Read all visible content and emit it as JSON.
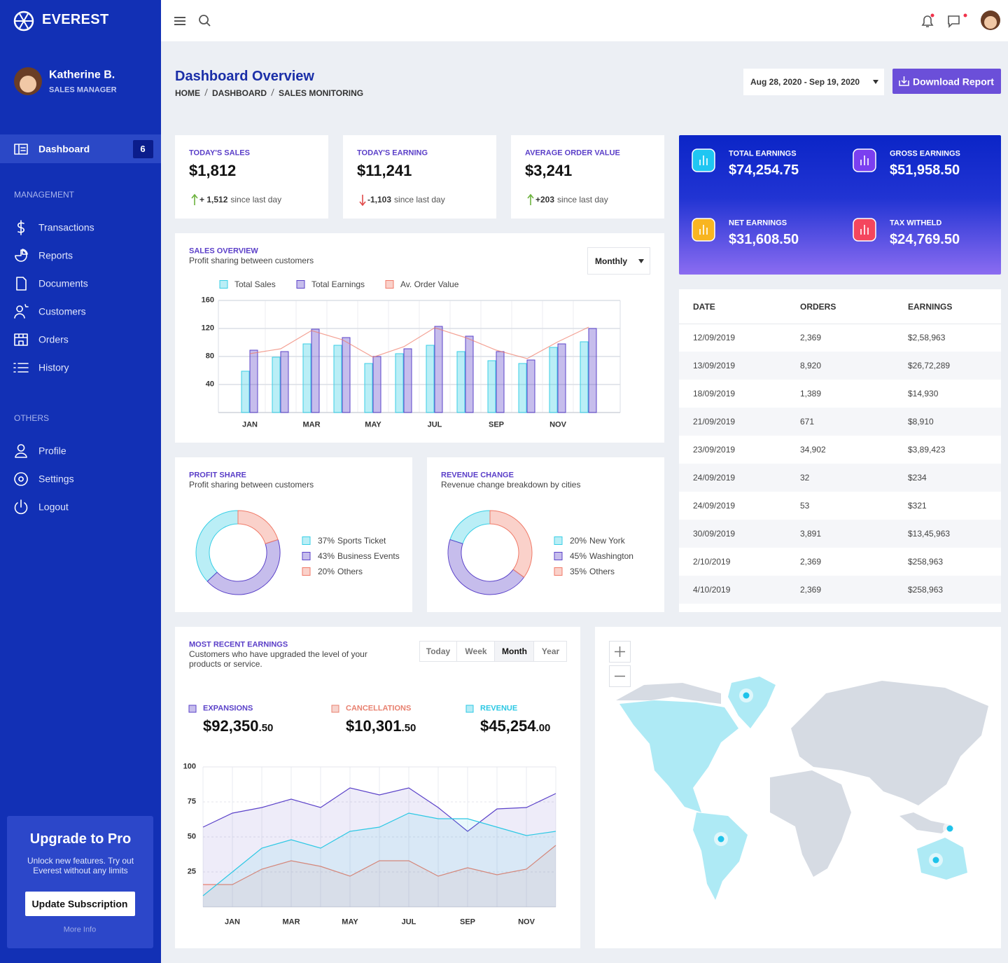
{
  "sidebar": {
    "brand": "EVEREST",
    "user": {
      "name": "Katherine B.",
      "role": "SALES MANAGER"
    },
    "active": {
      "label": "Dashboard",
      "badge": 6
    },
    "sections": [
      {
        "title": "MANAGEMENT",
        "items": [
          "Transactions",
          "Reports",
          "Documents",
          "Customers",
          "Orders",
          "History"
        ]
      },
      {
        "title": "OTHERS",
        "items": [
          "Profile",
          "Settings",
          "Logout"
        ]
      }
    ],
    "upgrade": {
      "title": "Upgrade to Pro",
      "text": "Unlock new features. Try out Everest without any limits",
      "button": "Update Subscription",
      "link": "More Info"
    }
  },
  "header": {
    "title": "Dashboard Overview",
    "breadcrumb": [
      "HOME",
      "DASHBOARD",
      "SALES MONITORING"
    ],
    "date_range": "Aug 28, 2020 - Sep 19, 2020",
    "download": "Download Report"
  },
  "stats": [
    {
      "label": "TODAY'S SALES",
      "value": "$1,812",
      "change": "+ 1,512",
      "note": "since last day",
      "trend": "up"
    },
    {
      "label": "TODAY'S EARNING",
      "value": "$11,241",
      "change": "-1,103",
      "note": "since last day",
      "trend": "down"
    },
    {
      "label": "AVERAGE ORDER VALUE",
      "value": "$3,241",
      "change": "+203",
      "note": "since last day",
      "trend": "up"
    }
  ],
  "earnings_summary": [
    {
      "label": "TOTAL EARNINGS",
      "value": "$74,254.75",
      "icon_color": "#1fc6f2"
    },
    {
      "label": "GROSS EARNINGS",
      "value": "$51,958.50",
      "icon_color": "#7b3ff0"
    },
    {
      "label": "NET EARNINGS",
      "value": "$31,608.50",
      "icon_color": "#f8b521"
    },
    {
      "label": "TAX WITHELD",
      "value": "$24,769.50",
      "icon_color": "#f4465e"
    }
  ],
  "orders_table": {
    "columns": [
      "DATE",
      "ORDERS",
      "EARNINGS"
    ],
    "rows": [
      [
        "12/09/2019",
        "2,369",
        "$2,58,963"
      ],
      [
        "13/09/2019",
        "8,920",
        "$26,72,289"
      ],
      [
        "18/09/2019",
        "1,389",
        "$14,930"
      ],
      [
        "21/09/2019",
        "671",
        "$8,910"
      ],
      [
        "23/09/2019",
        "34,902",
        "$3,89,423"
      ],
      [
        "24/09/2019",
        "32",
        "$234"
      ],
      [
        "24/09/2019",
        "53",
        "$321"
      ],
      [
        "30/09/2019",
        "3,891",
        "$13,45,963"
      ],
      [
        "2/10/2019",
        "2,369",
        "$258,963"
      ],
      [
        "4/10/2019",
        "2,369",
        "$258,963"
      ]
    ]
  },
  "chart_data": [
    {
      "type": "bar",
      "title": "SALES OVERVIEW",
      "subtitle": "Profit sharing between customers",
      "dropdown": "Monthly",
      "categories": [
        "JAN",
        null,
        "MAR",
        null,
        "MAY",
        null,
        "JUL",
        null,
        "SEP",
        null,
        "NOV",
        null
      ],
      "series": [
        {
          "name": "Total Sales",
          "type": "bar",
          "color": "#38cfe6",
          "values": [
            59,
            79,
            98,
            96,
            70,
            84,
            96,
            87,
            74,
            70,
            93,
            101
          ]
        },
        {
          "name": "Total Earnings",
          "type": "bar",
          "color": "#5b42c9",
          "values": [
            89,
            87,
            119,
            107,
            80,
            91,
            123,
            109,
            87,
            75,
            98,
            120
          ]
        },
        {
          "name": "Av. Order Value",
          "type": "line",
          "color": "#f07a68",
          "values": [
            84,
            91,
            117,
            104,
            79,
            94,
            121,
            107,
            89,
            77,
            101,
            122
          ]
        }
      ],
      "ylim": [
        0,
        160
      ],
      "yticks": [
        40,
        80,
        120,
        160
      ],
      "grid": true
    },
    {
      "type": "donut",
      "title": "PROFIT SHARE",
      "subtitle": "Profit sharing between customers",
      "categories": [
        "Sports Ticket",
        "Business Events",
        "Others"
      ],
      "values": [
        37,
        43,
        20
      ],
      "value_labels": [
        "37%",
        "43%",
        "20%"
      ],
      "colors": [
        "#38cfe6",
        "#5b42c9",
        "#f07a68"
      ]
    },
    {
      "type": "donut",
      "title": "REVENUE CHANGE",
      "subtitle": "Revenue change breakdown by cities",
      "categories": [
        "New York",
        "Washington",
        "Others"
      ],
      "values": [
        20,
        45,
        35
      ],
      "value_labels": [
        "20%",
        "45%",
        "35%"
      ],
      "colors": [
        "#38cfe6",
        "#5b42c9",
        "#f07a68"
      ]
    },
    {
      "type": "area",
      "title": "MOST RECENT EARNINGS",
      "subtitle": "Customers who have upgraded the level of your products or service.",
      "tabs": [
        "Today",
        "Week",
        "Month",
        "Year"
      ],
      "active_tab": 2,
      "categories": [
        null,
        "JAN",
        null,
        "MAR",
        null,
        "MAY",
        null,
        "JUL",
        null,
        "SEP",
        null,
        "NOV",
        null
      ],
      "series": [
        {
          "name": "EXPANSIONS",
          "color": "#5b42c9",
          "total": "$92,350",
          "total_cents": ".50",
          "values": [
            57,
            67,
            71,
            77,
            71,
            85,
            80,
            85,
            71,
            54,
            70,
            71,
            81
          ]
        },
        {
          "name": "CANCELLATIONS",
          "color": "#e8806f",
          "total": "$10,301",
          "total_cents": ".50",
          "values": [
            16,
            16,
            27,
            33,
            29,
            22,
            33,
            33,
            22,
            28,
            23,
            27,
            44
          ]
        },
        {
          "name": "REVENUE",
          "color": "#2cc8e4",
          "total": "$45,254",
          "total_cents": ".00",
          "values": [
            8,
            25,
            42,
            48,
            42,
            54,
            57,
            67,
            63,
            63,
            57,
            51,
            54
          ]
        }
      ],
      "ylim": [
        0,
        100
      ],
      "yticks": [
        25,
        50,
        75,
        100
      ],
      "grid": true
    }
  ]
}
